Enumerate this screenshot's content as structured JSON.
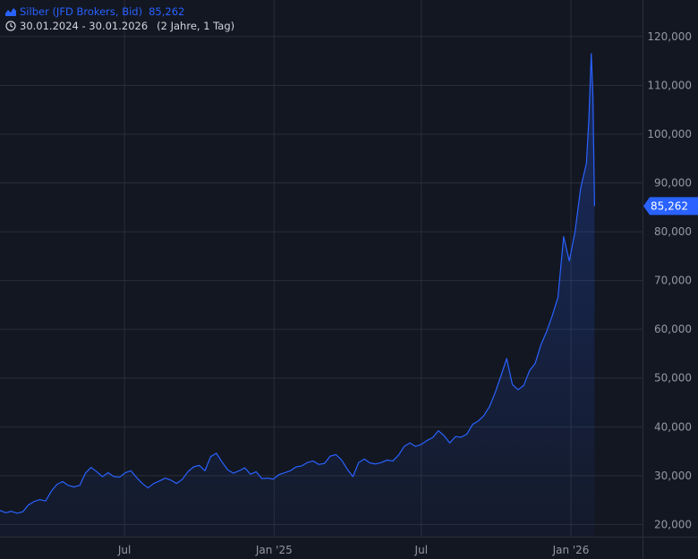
{
  "legend": {
    "series_label": "Silber (JFD Brokers, Bid)",
    "last_value": "85,262",
    "date_range": "30.01.2024 - 30.01.2026",
    "span": "(2 Jahre, 1 Tag)"
  },
  "colors": {
    "background": "#131722",
    "grid": "#2a2e39",
    "line": "#2962ff",
    "area": "#2962ff",
    "axis_text": "#9598a1",
    "price_tag": "#2962ff"
  },
  "chart_data": {
    "type": "area",
    "ylim": [
      17500,
      127500
    ],
    "xlim": [
      "2024-01-30",
      "2026-03-30"
    ],
    "y_ticks": [
      {
        "value": 20000,
        "label": "20,000"
      },
      {
        "value": 30000,
        "label": "30,000"
      },
      {
        "value": 40000,
        "label": "40,000"
      },
      {
        "value": 50000,
        "label": "50,000"
      },
      {
        "value": 60000,
        "label": "60,000"
      },
      {
        "value": 70000,
        "label": "70,000"
      },
      {
        "value": 80000,
        "label": "80,000"
      },
      {
        "value": 90000,
        "label": "90,000"
      },
      {
        "value": 100000,
        "label": "100,000"
      },
      {
        "value": 110000,
        "label": "110,000"
      },
      {
        "value": 120000,
        "label": "120,000"
      }
    ],
    "x_ticks": [
      {
        "date": "2024-07-01",
        "label": "Jul"
      },
      {
        "date": "2025-01-01",
        "label": "Jan '25"
      },
      {
        "date": "2025-07-01",
        "label": "Jul"
      },
      {
        "date": "2026-01-01",
        "label": "Jan '26"
      }
    ],
    "last_value": 85262,
    "last_label": "85,262",
    "grid": true,
    "series": [
      {
        "x": [
          "2024-01-30",
          "2024-02-06",
          "2024-02-13",
          "2024-02-20",
          "2024-02-27",
          "2024-03-05",
          "2024-03-12",
          "2024-03-19",
          "2024-03-26",
          "2024-04-02",
          "2024-04-09",
          "2024-04-16",
          "2024-04-23",
          "2024-04-30",
          "2024-05-07",
          "2024-05-14",
          "2024-05-21",
          "2024-05-28",
          "2024-06-04",
          "2024-06-11",
          "2024-06-18",
          "2024-06-25",
          "2024-07-02",
          "2024-07-09",
          "2024-07-16",
          "2024-07-23",
          "2024-07-30",
          "2024-08-06",
          "2024-08-13",
          "2024-08-20",
          "2024-08-27",
          "2024-09-03",
          "2024-09-10",
          "2024-09-17",
          "2024-09-24",
          "2024-10-01",
          "2024-10-08",
          "2024-10-15",
          "2024-10-22",
          "2024-10-29",
          "2024-11-05",
          "2024-11-12",
          "2024-11-19",
          "2024-11-26",
          "2024-12-03",
          "2024-12-10",
          "2024-12-17",
          "2024-12-24",
          "2024-12-31",
          "2025-01-07",
          "2025-01-14",
          "2025-01-21",
          "2025-01-28",
          "2025-02-04",
          "2025-02-11",
          "2025-02-18",
          "2025-02-25",
          "2025-03-04",
          "2025-03-11",
          "2025-03-18",
          "2025-03-25",
          "2025-04-01",
          "2025-04-08",
          "2025-04-15",
          "2025-04-22",
          "2025-04-29",
          "2025-05-06",
          "2025-05-13",
          "2025-05-20",
          "2025-05-27",
          "2025-06-03",
          "2025-06-10",
          "2025-06-17",
          "2025-06-24",
          "2025-07-01",
          "2025-07-08",
          "2025-07-15",
          "2025-07-22",
          "2025-07-29",
          "2025-08-05",
          "2025-08-12",
          "2025-08-19",
          "2025-08-26",
          "2025-09-02",
          "2025-09-09",
          "2025-09-16",
          "2025-09-23",
          "2025-09-30",
          "2025-10-07",
          "2025-10-14",
          "2025-10-21",
          "2025-10-28",
          "2025-11-04",
          "2025-11-11",
          "2025-11-18",
          "2025-11-25",
          "2025-12-02",
          "2025-12-09",
          "2025-12-16",
          "2025-12-23",
          "2025-12-30",
          "2026-01-06",
          "2026-01-13",
          "2026-01-20",
          "2026-01-23",
          "2026-01-26",
          "2026-01-28",
          "2026-01-30"
        ],
        "y": [
          22900,
          22400,
          22700,
          22300,
          22600,
          24000,
          24700,
          25100,
          24800,
          26800,
          28200,
          28800,
          28000,
          27700,
          28000,
          30500,
          31700,
          30800,
          29800,
          30600,
          29800,
          29700,
          30600,
          31000,
          29600,
          28400,
          27500,
          28400,
          28900,
          29500,
          29100,
          28400,
          29200,
          30800,
          31800,
          32100,
          31000,
          33900,
          34600,
          32800,
          31200,
          30500,
          31000,
          31600,
          30300,
          30800,
          29400,
          29500,
          29300,
          30200,
          30600,
          31000,
          31800,
          32000,
          32700,
          33000,
          32300,
          32500,
          34000,
          34300,
          33200,
          31300,
          29800,
          32700,
          33400,
          32600,
          32400,
          32700,
          33200,
          33000,
          34200,
          36000,
          36700,
          36000,
          36400,
          37200,
          37800,
          39200,
          38200,
          36700,
          38000,
          37900,
          38500,
          40500,
          41200,
          42300,
          44200,
          47100,
          50500,
          54000,
          48700,
          47600,
          48500,
          51500,
          53000,
          56800,
          59500,
          62800,
          66500,
          79000,
          74000,
          80000,
          89000,
          94000,
          103000,
          116500,
          108000,
          85262
        ]
      }
    ]
  }
}
